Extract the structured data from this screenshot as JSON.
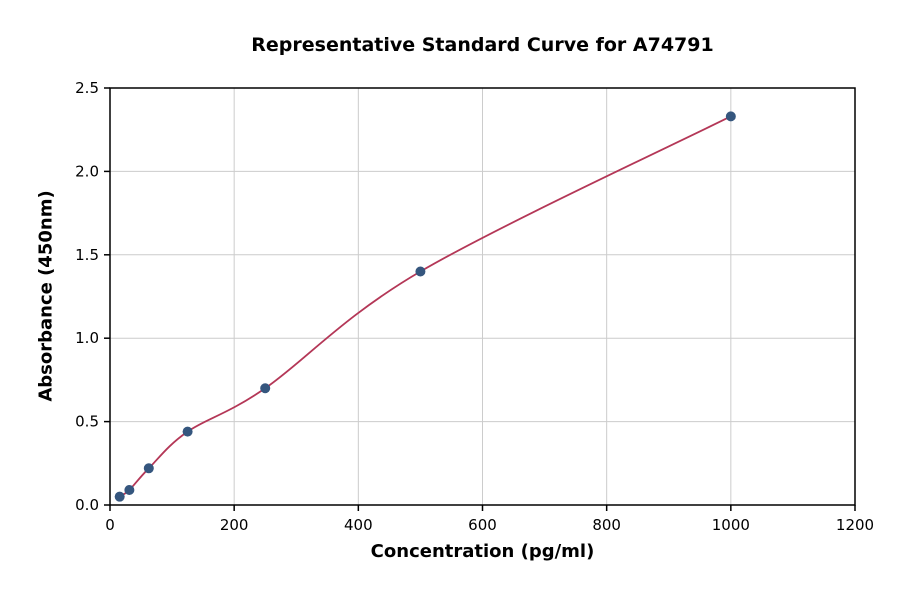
{
  "chart_data": {
    "type": "scatter",
    "title": "Representative Standard Curve for A74791",
    "xlabel": "Concentration (pg/ml)",
    "ylabel": "Absorbance (450nm)",
    "xlim": [
      0,
      1200
    ],
    "ylim": [
      0,
      2.5
    ],
    "x_ticks": [
      0,
      200,
      400,
      600,
      800,
      1000,
      1200
    ],
    "x_tick_labels": [
      "0",
      "200",
      "400",
      "600",
      "800",
      "1000",
      "1200"
    ],
    "y_ticks": [
      0.0,
      0.5,
      1.0,
      1.5,
      2.0,
      2.5
    ],
    "y_tick_labels": [
      "0.0",
      "0.5",
      "1.0",
      "1.5",
      "2.0",
      "2.5"
    ],
    "grid": true,
    "legend": "none",
    "points": [
      {
        "x": 15.6,
        "y": 0.05
      },
      {
        "x": 31.2,
        "y": 0.09
      },
      {
        "x": 62.5,
        "y": 0.22
      },
      {
        "x": 125,
        "y": 0.44
      },
      {
        "x": 250,
        "y": 0.7
      },
      {
        "x": 500,
        "y": 1.4
      },
      {
        "x": 1000,
        "y": 2.33
      }
    ],
    "point_color": "#35567e",
    "curve_color": "#b43757",
    "grid_color": "#cccccc",
    "axis_color": "#000000",
    "background_color": "#ffffff"
  }
}
